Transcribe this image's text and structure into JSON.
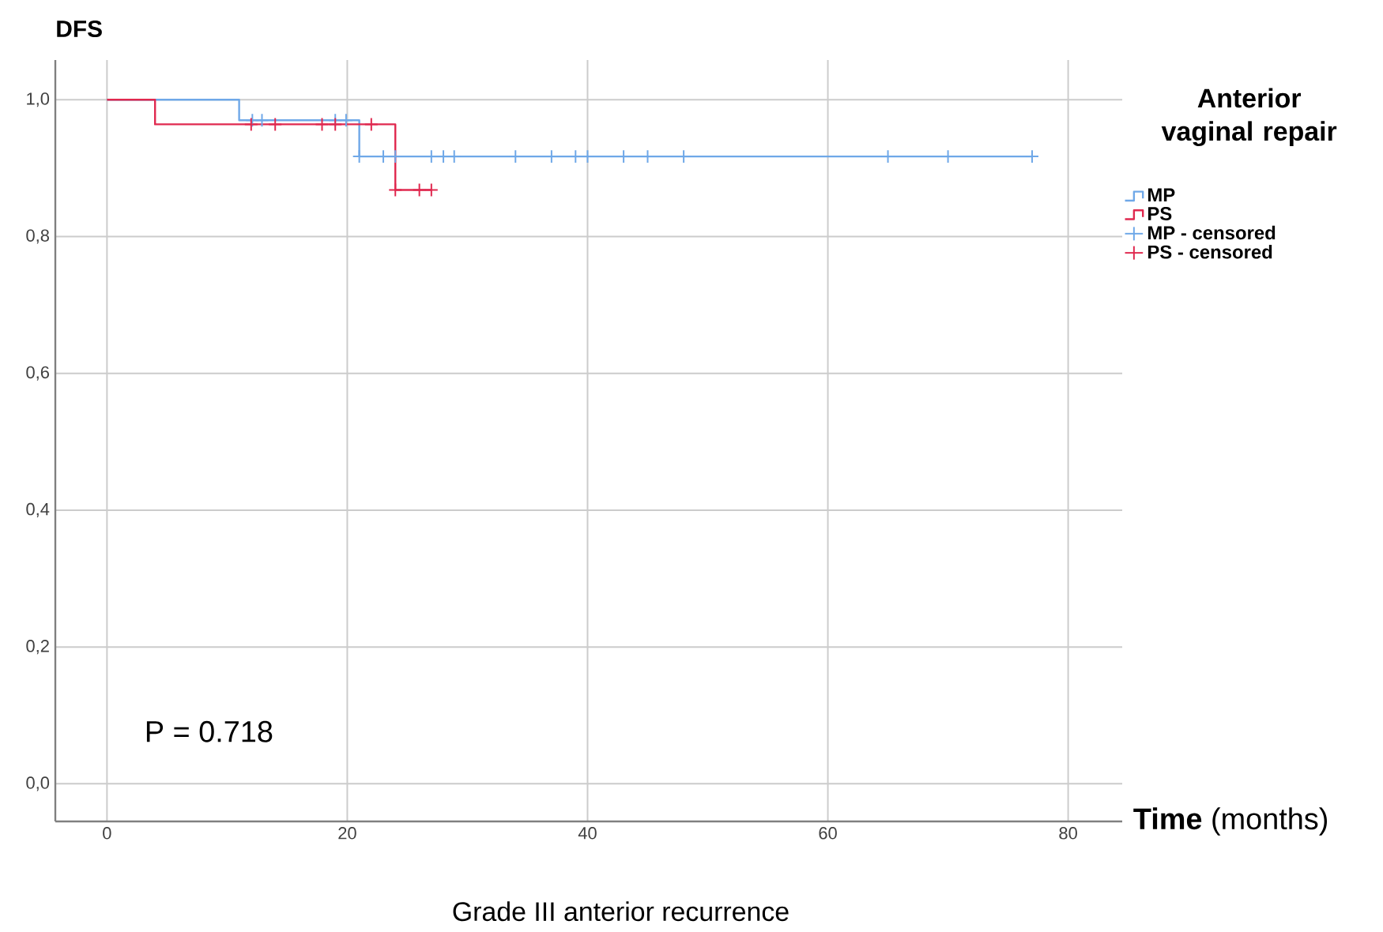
{
  "chart_data": {
    "type": "step",
    "ylabel": "DFS",
    "xlabel": "**Time** (months)",
    "legend_title": "Anterior vaginal repair",
    "annotations": [
      "P = 0.718",
      "Grade III anterior recurrence"
    ],
    "xlim": [
      -4.3,
      84.5
    ],
    "ylim": [
      -0.055,
      1.058
    ],
    "xticks": [
      0,
      20,
      40,
      60,
      80
    ],
    "yticks": [
      {
        "value": 0,
        "label": "0,0"
      },
      {
        "value": 0.2,
        "label": "0,2"
      },
      {
        "value": 0.4,
        "label": "0,4"
      },
      {
        "value": 0.6,
        "label": "0,6"
      },
      {
        "value": 0.8,
        "label": "0,8"
      },
      {
        "value": 1,
        "label": "1,0"
      }
    ],
    "grid": true,
    "legend": "right",
    "series": [
      {
        "name": "MP",
        "color": "#6fa8e8",
        "x": [
          0,
          11,
          21,
          77
        ],
        "values": [
          1,
          0.97,
          0.917,
          0.917
        ]
      },
      {
        "name": "PS",
        "color": "#e0294f",
        "x": [
          0,
          4,
          24,
          27
        ],
        "values": [
          1,
          0.964,
          0.868,
          0.868
        ]
      },
      {
        "name": "MP - censored",
        "type": "scatter",
        "marker": "cross",
        "color": "#6fa8e8",
        "x": [
          12.1,
          12.9,
          19,
          19.9,
          21,
          23,
          24,
          27,
          28,
          28.9,
          34,
          37,
          39,
          40,
          43,
          45,
          48,
          65,
          70,
          77
        ],
        "values": [
          0.97,
          0.97,
          0.97,
          0.97,
          0.917,
          0.917,
          0.917,
          0.917,
          0.917,
          0.917,
          0.917,
          0.917,
          0.917,
          0.917,
          0.917,
          0.917,
          0.917,
          0.917,
          0.917,
          0.917
        ]
      },
      {
        "name": "PS - censored",
        "type": "scatter",
        "marker": "cross",
        "color": "#e0294f",
        "x": [
          12,
          14,
          17.9,
          19,
          22,
          24,
          26,
          27
        ],
        "values": [
          0.964,
          0.964,
          0.964,
          0.964,
          0.964,
          0.868,
          0.868,
          0.868
        ]
      }
    ]
  }
}
